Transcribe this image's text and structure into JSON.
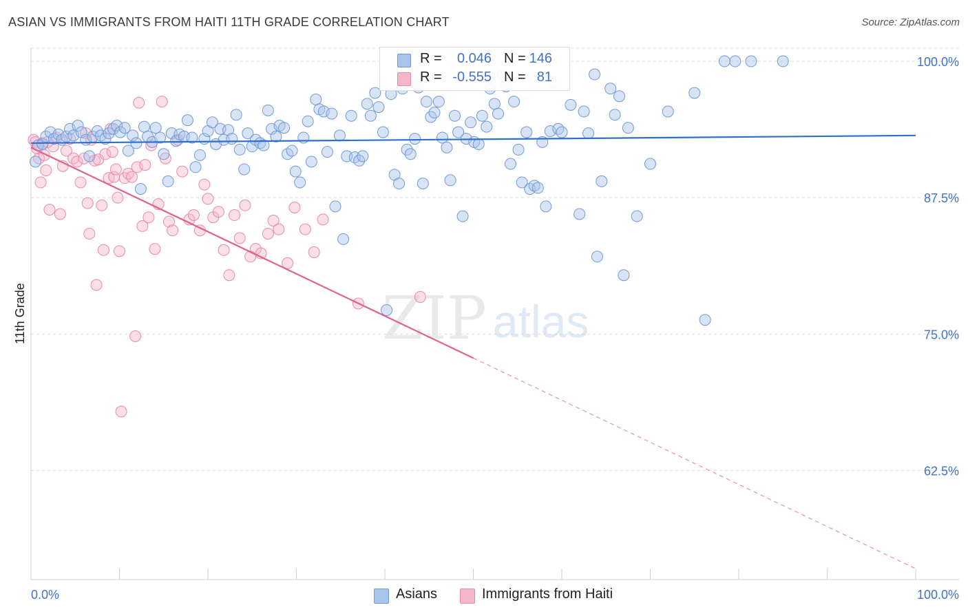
{
  "header": {
    "title": "ASIAN VS IMMIGRANTS FROM HAITI 11TH GRADE CORRELATION CHART",
    "source": "Source: ZipAtlas.com"
  },
  "watermark": {
    "zip": "ZIP",
    "atlas": "atlas"
  },
  "legend": {
    "series1": {
      "r_label": "R =",
      "r_value": "0.046",
      "n_label": "N =",
      "n_value": "146"
    },
    "series2": {
      "r_label": "R =",
      "r_value": "-0.555",
      "n_label": "N =",
      "n_value": "81"
    }
  },
  "bottom_legend": {
    "series1": "Asians",
    "series2": "Immigrants from Haiti"
  },
  "colors": {
    "asian_fill": "#a9c4ec",
    "asian_stroke": "#6f9ad8",
    "asian_line": "#2f6fcc",
    "haiti_fill": "#f4b6cb",
    "haiti_stroke": "#e88aa8",
    "haiti_line": "#e0608e",
    "tick_text": "#3f73c9",
    "grid": "#dcdcdc"
  },
  "chart_data": {
    "type": "scatter",
    "title": "ASIAN VS IMMIGRANTS FROM HAITI 11TH GRADE CORRELATION CHART",
    "xlabel": "",
    "ylabel": "11th Grade",
    "xlim": [
      0,
      100
    ],
    "ylim": [
      52.5,
      101.2
    ],
    "x_tick_labels": [
      "0.0%",
      "100.0%"
    ],
    "y_ticks": [
      62.5,
      75.0,
      87.5,
      100.0
    ],
    "y_tick_labels": [
      "62.5%",
      "75.0%",
      "87.5%",
      "100.0%"
    ],
    "grid": true,
    "series": [
      {
        "name": "Asians",
        "r": 0.046,
        "n": 146,
        "trend": {
          "x": [
            0,
            100
          ],
          "y": [
            92.5,
            93.2
          ]
        },
        "points": [
          [
            0.5,
            90.8
          ],
          [
            0.8,
            92.3
          ],
          [
            1.3,
            92.4
          ],
          [
            1.7,
            93.1
          ],
          [
            2.2,
            93.5
          ],
          [
            2.6,
            92.9
          ],
          [
            3.1,
            93.3
          ],
          [
            3.5,
            92.8
          ],
          [
            4.0,
            93.1
          ],
          [
            4.4,
            93.8
          ],
          [
            4.8,
            93.2
          ],
          [
            5.3,
            94.1
          ],
          [
            5.7,
            93.5
          ],
          [
            6.2,
            92.8
          ],
          [
            6.6,
            91.3
          ],
          [
            7.0,
            93.1
          ],
          [
            7.5,
            93.6
          ],
          [
            7.9,
            93.2
          ],
          [
            8.4,
            92.9
          ],
          [
            8.8,
            93.4
          ],
          [
            9.3,
            93.8
          ],
          [
            9.7,
            94.1
          ],
          [
            10.1,
            93.5
          ],
          [
            10.6,
            93.9
          ],
          [
            11.0,
            91.8
          ],
          [
            11.5,
            93.2
          ],
          [
            11.9,
            92.5
          ],
          [
            12.4,
            88.3
          ],
          [
            12.8,
            94.0
          ],
          [
            13.2,
            93.1
          ],
          [
            13.7,
            92.6
          ],
          [
            14.1,
            93.9
          ],
          [
            14.6,
            93.0
          ],
          [
            15.0,
            91.5
          ],
          [
            15.5,
            89.0
          ],
          [
            15.9,
            93.4
          ],
          [
            16.4,
            92.7
          ],
          [
            16.8,
            93.3
          ],
          [
            17.3,
            93.1
          ],
          [
            17.7,
            94.6
          ],
          [
            18.2,
            93.0
          ],
          [
            18.6,
            90.3
          ],
          [
            19.1,
            91.4
          ],
          [
            19.6,
            92.9
          ],
          [
            20.0,
            93.6
          ],
          [
            20.5,
            94.4
          ],
          [
            20.9,
            92.4
          ],
          [
            21.4,
            93.8
          ],
          [
            21.8,
            92.8
          ],
          [
            22.3,
            93.7
          ],
          [
            22.7,
            92.9
          ],
          [
            23.2,
            95.1
          ],
          [
            23.6,
            91.9
          ],
          [
            24.1,
            90.1
          ],
          [
            24.5,
            93.4
          ],
          [
            25.0,
            92.2
          ],
          [
            25.4,
            92.8
          ],
          [
            25.9,
            92.5
          ],
          [
            26.3,
            92.3
          ],
          [
            26.8,
            95.5
          ],
          [
            27.2,
            93.8
          ],
          [
            27.7,
            93.1
          ],
          [
            28.1,
            94.1
          ],
          [
            28.6,
            93.9
          ],
          [
            29.0,
            91.5
          ],
          [
            29.5,
            91.8
          ],
          [
            29.9,
            89.9
          ],
          [
            30.4,
            88.9
          ],
          [
            30.8,
            93.0
          ],
          [
            31.3,
            94.5
          ],
          [
            31.7,
            90.8
          ],
          [
            32.2,
            96.5
          ],
          [
            32.6,
            95.6
          ],
          [
            33.1,
            95.4
          ],
          [
            33.5,
            91.7
          ],
          [
            34.0,
            95.2
          ],
          [
            34.4,
            86.7
          ],
          [
            34.9,
            93.2
          ],
          [
            35.3,
            83.7
          ],
          [
            35.7,
            91.3
          ],
          [
            36.2,
            95.0
          ],
          [
            36.6,
            91.2
          ],
          [
            37.1,
            90.9
          ],
          [
            37.5,
            91.3
          ],
          [
            38.0,
            96.1
          ],
          [
            38.4,
            95.0
          ],
          [
            38.9,
            97.1
          ],
          [
            39.3,
            95.8
          ],
          [
            39.8,
            93.5
          ],
          [
            40.2,
            77.2
          ],
          [
            40.7,
            97.0
          ],
          [
            41.1,
            89.6
          ],
          [
            41.6,
            88.8
          ],
          [
            42.0,
            97.5
          ],
          [
            42.5,
            91.9
          ],
          [
            42.9,
            91.5
          ],
          [
            43.4,
            92.9
          ],
          [
            43.8,
            97.6
          ],
          [
            44.3,
            88.8
          ],
          [
            44.7,
            96.3
          ],
          [
            45.2,
            94.9
          ],
          [
            45.6,
            95.3
          ],
          [
            46.1,
            96.3
          ],
          [
            46.5,
            93.0
          ],
          [
            47.0,
            92.1
          ],
          [
            47.4,
            89.1
          ],
          [
            47.9,
            95.0
          ],
          [
            48.3,
            93.5
          ],
          [
            48.8,
            85.8
          ],
          [
            49.2,
            92.9
          ],
          [
            49.7,
            94.4
          ],
          [
            50.1,
            92.6
          ],
          [
            50.6,
            92.4
          ],
          [
            51.0,
            95.0
          ],
          [
            51.5,
            94.0
          ],
          [
            51.9,
            97.5
          ],
          [
            52.4,
            96.1
          ],
          [
            52.8,
            95.2
          ],
          [
            53.3,
            98.7
          ],
          [
            53.7,
            97.7
          ],
          [
            54.2,
            90.6
          ],
          [
            54.6,
            96.3
          ],
          [
            55.1,
            91.9
          ],
          [
            55.5,
            88.9
          ],
          [
            56.0,
            93.5
          ],
          [
            56.4,
            88.3
          ],
          [
            56.9,
            88.6
          ],
          [
            57.3,
            88.4
          ],
          [
            57.8,
            92.6
          ],
          [
            58.2,
            86.7
          ],
          [
            58.7,
            93.6
          ],
          [
            59.1,
            98.1
          ],
          [
            59.6,
            93.8
          ],
          [
            60.0,
            93.5
          ],
          [
            61.0,
            96.0
          ],
          [
            62.0,
            86.0
          ],
          [
            62.5,
            95.4
          ],
          [
            63.0,
            93.4
          ],
          [
            63.7,
            98.8
          ],
          [
            64.0,
            82.1
          ],
          [
            64.5,
            89.0
          ],
          [
            65.5,
            97.5
          ],
          [
            66.0,
            95.1
          ],
          [
            66.5,
            96.8
          ],
          [
            67.0,
            80.4
          ],
          [
            67.5,
            93.9
          ],
          [
            68.5,
            85.8
          ],
          [
            70.0,
            90.6
          ],
          [
            72.0,
            95.4
          ],
          [
            75.0,
            97.1
          ],
          [
            76.2,
            76.3
          ],
          [
            78.4,
            100.0
          ],
          [
            79.6,
            100.0
          ],
          [
            81.4,
            100.0
          ],
          [
            85.0,
            100.0
          ]
        ]
      },
      {
        "name": "Immigrants from Haiti",
        "r": -0.555,
        "n": 81,
        "trend": {
          "x": [
            0,
            100
          ],
          "y": [
            92.1,
            53.5
          ],
          "solid_until_x": 50
        },
        "points": [
          [
            0.3,
            92.8
          ],
          [
            0.5,
            92.6
          ],
          [
            0.7,
            92.0
          ],
          [
            0.9,
            91.1
          ],
          [
            1.1,
            88.9
          ],
          [
            1.3,
            92.5
          ],
          [
            1.5,
            91.4
          ],
          [
            1.7,
            90.0
          ],
          [
            1.9,
            92.6
          ],
          [
            2.1,
            86.4
          ],
          [
            2.5,
            92.2
          ],
          [
            2.9,
            93.0
          ],
          [
            3.3,
            86.0
          ],
          [
            3.6,
            90.4
          ],
          [
            4.0,
            91.8
          ],
          [
            4.4,
            92.9
          ],
          [
            4.8,
            91.1
          ],
          [
            5.2,
            90.8
          ],
          [
            5.6,
            88.9
          ],
          [
            6.0,
            91.1
          ],
          [
            6.2,
            93.4
          ],
          [
            6.4,
            87.0
          ],
          [
            6.6,
            84.2
          ],
          [
            6.8,
            92.8
          ],
          [
            7.2,
            90.9
          ],
          [
            7.4,
            79.5
          ],
          [
            7.6,
            91.0
          ],
          [
            8.0,
            86.8
          ],
          [
            8.2,
            82.7
          ],
          [
            8.4,
            91.5
          ],
          [
            8.8,
            89.3
          ],
          [
            9.0,
            93.8
          ],
          [
            9.2,
            91.7
          ],
          [
            9.4,
            89.4
          ],
          [
            9.6,
            90.1
          ],
          [
            9.8,
            87.5
          ],
          [
            10.0,
            82.6
          ],
          [
            10.2,
            67.9
          ],
          [
            10.6,
            89.3
          ],
          [
            11.0,
            89.7
          ],
          [
            11.4,
            89.4
          ],
          [
            11.8,
            74.8
          ],
          [
            12.0,
            90.3
          ],
          [
            12.2,
            96.2
          ],
          [
            12.6,
            84.9
          ],
          [
            12.9,
            90.5
          ],
          [
            13.3,
            85.7
          ],
          [
            13.6,
            92.3
          ],
          [
            14.0,
            82.8
          ],
          [
            14.4,
            86.9
          ],
          [
            14.8,
            96.3
          ],
          [
            15.2,
            91.1
          ],
          [
            15.6,
            85.3
          ],
          [
            16.0,
            84.5
          ],
          [
            16.6,
            92.8
          ],
          [
            17.1,
            89.9
          ],
          [
            17.9,
            85.5
          ],
          [
            18.4,
            85.9
          ],
          [
            19.1,
            84.5
          ],
          [
            19.6,
            88.7
          ],
          [
            20.0,
            87.4
          ],
          [
            20.6,
            85.7
          ],
          [
            21.2,
            86.2
          ],
          [
            21.8,
            82.7
          ],
          [
            22.4,
            80.4
          ],
          [
            23.0,
            85.9
          ],
          [
            23.6,
            83.8
          ],
          [
            24.2,
            86.8
          ],
          [
            24.8,
            82.1
          ],
          [
            25.4,
            82.8
          ],
          [
            26.0,
            82.4
          ],
          [
            26.8,
            84.2
          ],
          [
            27.4,
            85.4
          ],
          [
            28.0,
            84.6
          ],
          [
            29.0,
            81.5
          ],
          [
            29.8,
            86.6
          ],
          [
            31.0,
            84.6
          ],
          [
            32.0,
            82.5
          ],
          [
            33.0,
            85.5
          ],
          [
            37.0,
            77.8
          ],
          [
            44.0,
            78.4
          ]
        ]
      }
    ]
  }
}
